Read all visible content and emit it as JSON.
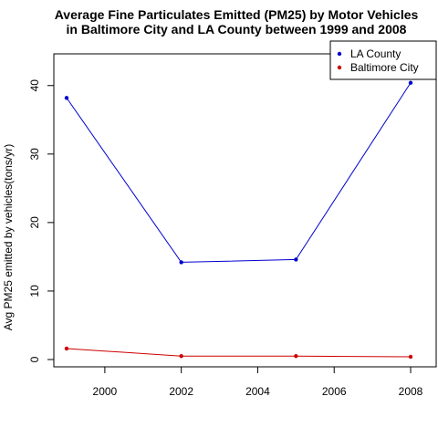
{
  "chart_data": {
    "type": "line",
    "title": "Average Fine Particulates Emitted (PM25) by Motor Vehicles",
    "subtitle": "in Baltimore City and LA County between 1999 and 2008",
    "xlabel": "",
    "ylabel": "Avg PM25 emitted by vehicles(tons/yr)",
    "x": [
      1999,
      2002,
      2005,
      2008
    ],
    "xlim": [
      1999,
      2008
    ],
    "ylim": [
      0,
      40.5
    ],
    "xticks": [
      2000,
      2002,
      2004,
      2006,
      2008
    ],
    "yticks": [
      0,
      10,
      20,
      30,
      40
    ],
    "grid": false,
    "legend_position": "top-right",
    "series": [
      {
        "name": "LA County",
        "color": "#0000cd",
        "values": [
          38.2,
          14.2,
          14.6,
          40.4
        ]
      },
      {
        "name": "Baltimore City",
        "color": "#cd0000",
        "values": [
          1.6,
          0.5,
          0.5,
          0.4
        ]
      }
    ]
  }
}
